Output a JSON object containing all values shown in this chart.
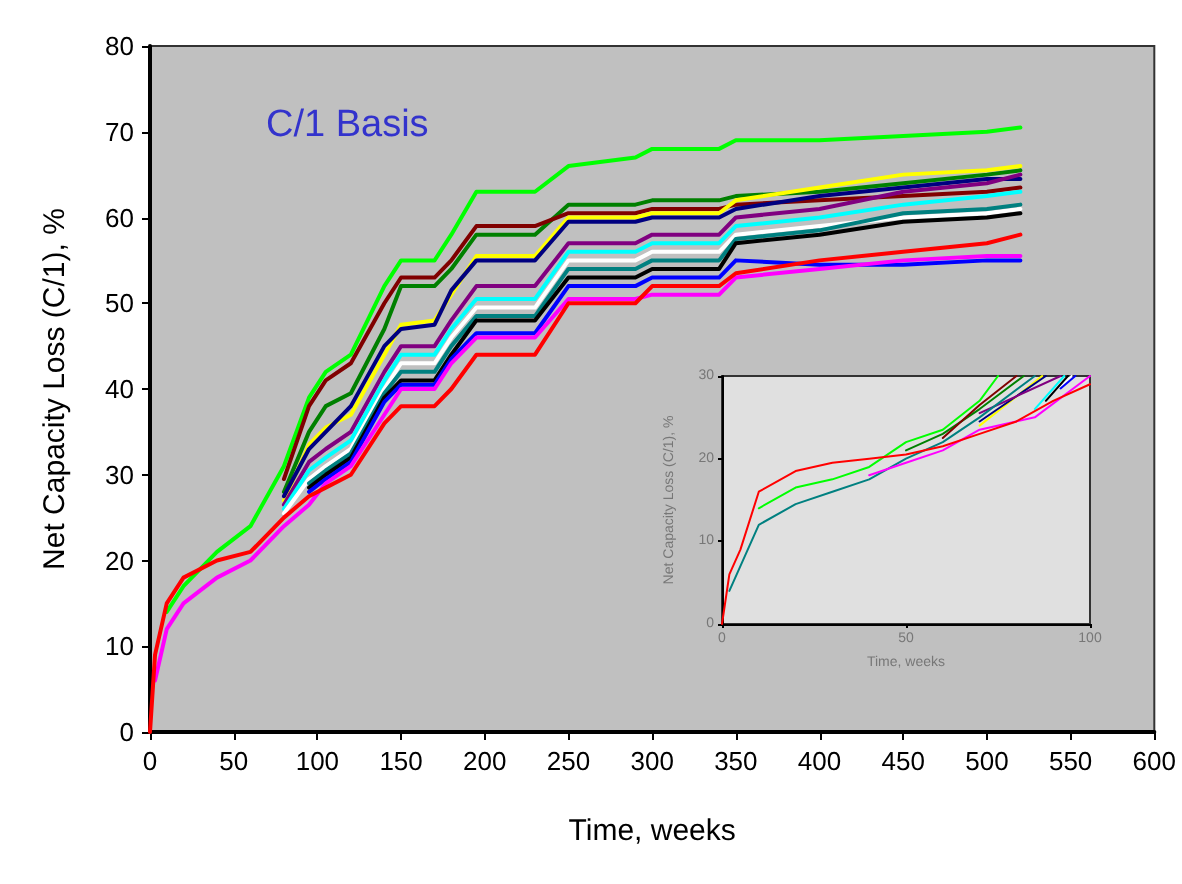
{
  "chart_data": [
    {
      "type": "line",
      "xlabel": "Time, weeks",
      "ylabel": "Net Capacity Loss (C/1), %",
      "annotations": [
        "C/1 Basis"
      ],
      "xlim": [
        0,
        600
      ],
      "ylim": [
        0,
        80
      ],
      "xticks": [
        0,
        50,
        100,
        150,
        200,
        250,
        300,
        350,
        400,
        450,
        500,
        550,
        600
      ],
      "yticks": [
        0,
        10,
        20,
        30,
        40,
        50,
        60,
        70,
        80
      ],
      "marker": "none",
      "line_style": "solid",
      "x": [
        0,
        3,
        10,
        20,
        40,
        60,
        80,
        95,
        105,
        120,
        140,
        150,
        170,
        180,
        195,
        230,
        250,
        290,
        300,
        340,
        350,
        400,
        450,
        500,
        520
      ],
      "series": [
        {
          "color": "#00ff00",
          "values": [
            null,
            null,
            14,
            17,
            21,
            24,
            31,
            39,
            42,
            44,
            52,
            55,
            55,
            58,
            63,
            63,
            66,
            67,
            68,
            68,
            69,
            69,
            69.5,
            70,
            70.5
          ]
        },
        {
          "color": "#008000",
          "values": [
            null,
            null,
            null,
            null,
            null,
            null,
            28,
            35,
            38,
            39.5,
            47,
            52,
            52,
            54,
            58,
            58,
            61.5,
            61.5,
            62,
            62,
            62.5,
            63,
            64,
            65,
            65.5
          ]
        },
        {
          "color": "#800000",
          "values": [
            null,
            null,
            null,
            null,
            null,
            null,
            29.5,
            38,
            41,
            43,
            50,
            53,
            53,
            55,
            59,
            59,
            60.5,
            60.5,
            61,
            61,
            61.5,
            62,
            62.5,
            63,
            63.5
          ]
        },
        {
          "color": "#ffff00",
          "values": [
            null,
            null,
            null,
            null,
            null,
            null,
            27,
            33.5,
            35.5,
            37,
            44,
            47.5,
            48,
            51,
            55.5,
            55.5,
            60,
            60,
            60.5,
            60.5,
            62,
            63.5,
            65,
            65.5,
            66
          ]
        },
        {
          "color": "#000080",
          "values": [
            null,
            null,
            null,
            null,
            null,
            null,
            27.5,
            33,
            35,
            38,
            45,
            47,
            47.5,
            51.5,
            55,
            55,
            59.5,
            59.5,
            60,
            60,
            61,
            62.5,
            63.5,
            64.5,
            64.5
          ]
        },
        {
          "color": "#800080",
          "values": [
            null,
            null,
            null,
            null,
            null,
            null,
            26.5,
            31.5,
            33,
            35,
            42,
            45,
            45,
            48,
            52,
            52,
            57,
            57,
            58,
            58,
            60,
            61,
            63,
            64,
            65
          ]
        },
        {
          "color": "#00ffff",
          "values": [
            null,
            null,
            null,
            null,
            null,
            null,
            26,
            30.5,
            32,
            34,
            41,
            44,
            44,
            47,
            50.5,
            50.5,
            56,
            56,
            57,
            57,
            59,
            60,
            61.5,
            62.5,
            63
          ]
        },
        {
          "color": "#ffffff",
          "values": [
            null,
            null,
            null,
            null,
            null,
            null,
            25.5,
            29.5,
            31,
            33,
            40,
            43,
            43,
            46,
            49.5,
            49.5,
            55,
            55,
            56,
            56,
            58,
            59,
            60,
            60.5,
            61
          ]
        },
        {
          "color": "#008080",
          "values": [
            null,
            null,
            null,
            null,
            null,
            null,
            null,
            29,
            30.5,
            32.5,
            39.5,
            42,
            42,
            45,
            48.5,
            48.5,
            54,
            54,
            55,
            55,
            57.5,
            58.5,
            60.5,
            61,
            61.5
          ]
        },
        {
          "color": "#000000",
          "values": [
            null,
            null,
            null,
            null,
            null,
            null,
            null,
            28.5,
            30,
            32,
            39,
            41,
            41,
            44,
            48,
            48,
            53,
            53,
            54,
            54,
            57,
            58,
            59.5,
            60,
            60.5
          ]
        },
        {
          "color": "#0000ff",
          "values": [
            null,
            null,
            null,
            null,
            null,
            null,
            null,
            28,
            29.5,
            31.5,
            38.5,
            40.5,
            40.5,
            43.5,
            46.5,
            46.5,
            52,
            52,
            53,
            53,
            55,
            54.5,
            54.5,
            55,
            55
          ]
        },
        {
          "color": "#ff00ff",
          "values": [
            null,
            6,
            12,
            15,
            18,
            20,
            24,
            26.5,
            29,
            31,
            37,
            40,
            40,
            43,
            46,
            46,
            50.5,
            50.5,
            51,
            51,
            53,
            54,
            55,
            55.5,
            55.5
          ]
        },
        {
          "color": "#ff0000",
          "values": [
            0,
            9,
            15,
            18,
            20,
            21,
            25,
            27.5,
            28.5,
            30,
            36,
            38,
            38,
            40,
            44,
            44,
            50,
            50,
            52,
            52,
            53.5,
            55,
            56,
            57,
            58
          ]
        }
      ]
    },
    {
      "type": "line",
      "xlabel": "Time, weeks",
      "ylabel": "Net Capacity Loss (C/1), %",
      "xlim": [
        0,
        100
      ],
      "ylim": [
        0,
        30
      ],
      "xticks": [
        0,
        50,
        100
      ],
      "yticks": [
        0,
        10,
        20,
        30
      ],
      "marker": "none",
      "line_style": "solid",
      "series": [
        {
          "color": "#00ff00",
          "x": [
            10,
            20,
            30,
            40,
            50,
            60,
            70,
            75
          ],
          "values": [
            14,
            16.5,
            17.5,
            19,
            22,
            23.5,
            27,
            30
          ]
        },
        {
          "color": "#008000",
          "x": [
            50,
            60,
            70,
            82
          ],
          "values": [
            21,
            23,
            26,
            30
          ]
        },
        {
          "color": "#800000",
          "x": [
            60,
            70,
            80
          ],
          "values": [
            22.5,
            26.5,
            30
          ]
        },
        {
          "color": "#ffff00",
          "x": [
            70,
            87
          ],
          "values": [
            24,
            30
          ]
        },
        {
          "color": "#000080",
          "x": [
            70,
            88
          ],
          "values": [
            24.5,
            30
          ]
        },
        {
          "color": "#800080",
          "x": [
            70,
            92
          ],
          "values": [
            25.5,
            30
          ]
        },
        {
          "color": "#00ffff",
          "x": [
            85,
            93
          ],
          "values": [
            26,
            30
          ]
        },
        {
          "color": "#ffffff",
          "x": [
            90,
            95
          ],
          "values": [
            28,
            30
          ]
        },
        {
          "color": "#008080",
          "x": [
            2,
            5,
            10,
            20,
            30,
            40,
            50,
            60,
            70,
            85
          ],
          "values": [
            4,
            7,
            12,
            14.5,
            16,
            17.5,
            20,
            22,
            25,
            30
          ]
        },
        {
          "color": "#000000",
          "x": [
            88,
            94
          ],
          "values": [
            27,
            30
          ]
        },
        {
          "color": "#0000ff",
          "x": [
            92,
            96
          ],
          "values": [
            28.5,
            30
          ]
        },
        {
          "color": "#ff00ff",
          "x": [
            40,
            50,
            60,
            70,
            85,
            100
          ],
          "values": [
            18,
            19.5,
            21,
            23.5,
            25,
            30
          ]
        },
        {
          "color": "#ff0000",
          "x": [
            0,
            2,
            5,
            10,
            20,
            30,
            40,
            50,
            60,
            70,
            80,
            90,
            100
          ],
          "values": [
            0,
            6,
            9,
            16,
            18.5,
            19.5,
            20,
            20.5,
            21.5,
            23,
            24.5,
            27,
            29
          ]
        }
      ]
    }
  ]
}
